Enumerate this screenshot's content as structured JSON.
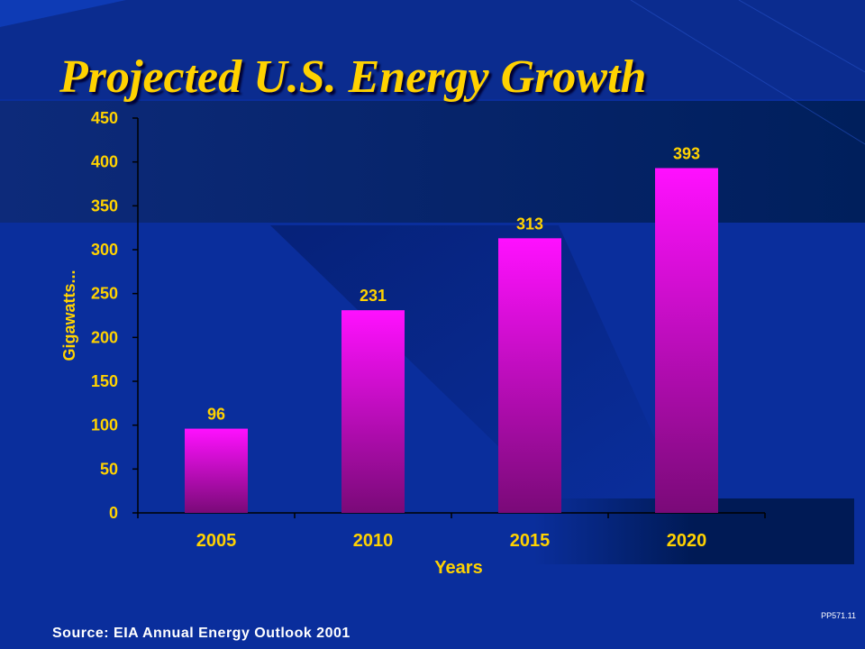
{
  "slide": {
    "title": "Projected U.S. Energy Growth",
    "source": "Source: EIA Annual Energy Outlook 2001",
    "code": "PP571.11"
  },
  "colors": {
    "background": "#0a2e9c",
    "title": "#ffd200",
    "axis_text": "#ffd200",
    "bar_top": "#ff10ff",
    "bar_bottom": "#7a0a78",
    "source_text": "#ffffff"
  },
  "chart_data": {
    "type": "bar",
    "categories": [
      "2005",
      "2010",
      "2015",
      "2020"
    ],
    "values": [
      96,
      231,
      313,
      393
    ],
    "data_labels": [
      "96",
      "231",
      "313",
      "393"
    ],
    "title": "Projected U.S. Energy Growth",
    "xlabel": "Years",
    "ylabel": "Gigawatts...",
    "ylim": [
      0,
      450
    ],
    "yticks": [
      0,
      50,
      100,
      150,
      200,
      250,
      300,
      350,
      400,
      450
    ],
    "grid": false,
    "legend": "none"
  }
}
